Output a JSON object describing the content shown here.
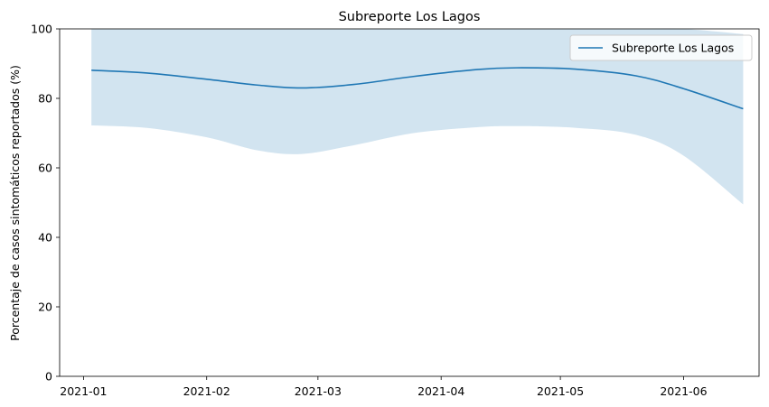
{
  "chart_data": {
    "type": "line",
    "title": "Subreporte Los Lagos",
    "xlabel": "",
    "ylabel": "Porcentaje de casos sintomáticos reportados (%)",
    "ylim": [
      0,
      100
    ],
    "xlim": [
      "2020-12-26",
      "2021-06-20"
    ],
    "x_ticks": [
      "2021-01",
      "2021-02",
      "2021-03",
      "2021-04",
      "2021-05",
      "2021-06"
    ],
    "y_ticks": [
      0,
      20,
      40,
      60,
      80,
      100
    ],
    "legend": {
      "placement": "top-right",
      "entries": [
        "Subreporte Los Lagos"
      ]
    },
    "grid": false,
    "colors": {
      "line": "#1f77b4",
      "band": "#1f77b4"
    },
    "series": [
      {
        "name": "Subreporte Los Lagos",
        "x": [
          "2021-01-03",
          "2021-01-17",
          "2021-02-01",
          "2021-02-14",
          "2021-02-25",
          "2021-03-10",
          "2021-03-25",
          "2021-04-10",
          "2021-04-20",
          "2021-05-05",
          "2021-05-20",
          "2021-06-01",
          "2021-06-16"
        ],
        "y": [
          88.1,
          87.3,
          85.5,
          83.8,
          83.0,
          84.0,
          86.3,
          88.3,
          88.8,
          88.4,
          86.5,
          82.8,
          77.0
        ],
        "lower": [
          72.2,
          71.5,
          68.8,
          65.0,
          64.0,
          66.5,
          70.0,
          71.7,
          72.0,
          71.5,
          69.5,
          63.5,
          49.5
        ],
        "upper": [
          100,
          100,
          100,
          100,
          100,
          100,
          100,
          100,
          100,
          100,
          100,
          100,
          98.5
        ]
      }
    ]
  }
}
